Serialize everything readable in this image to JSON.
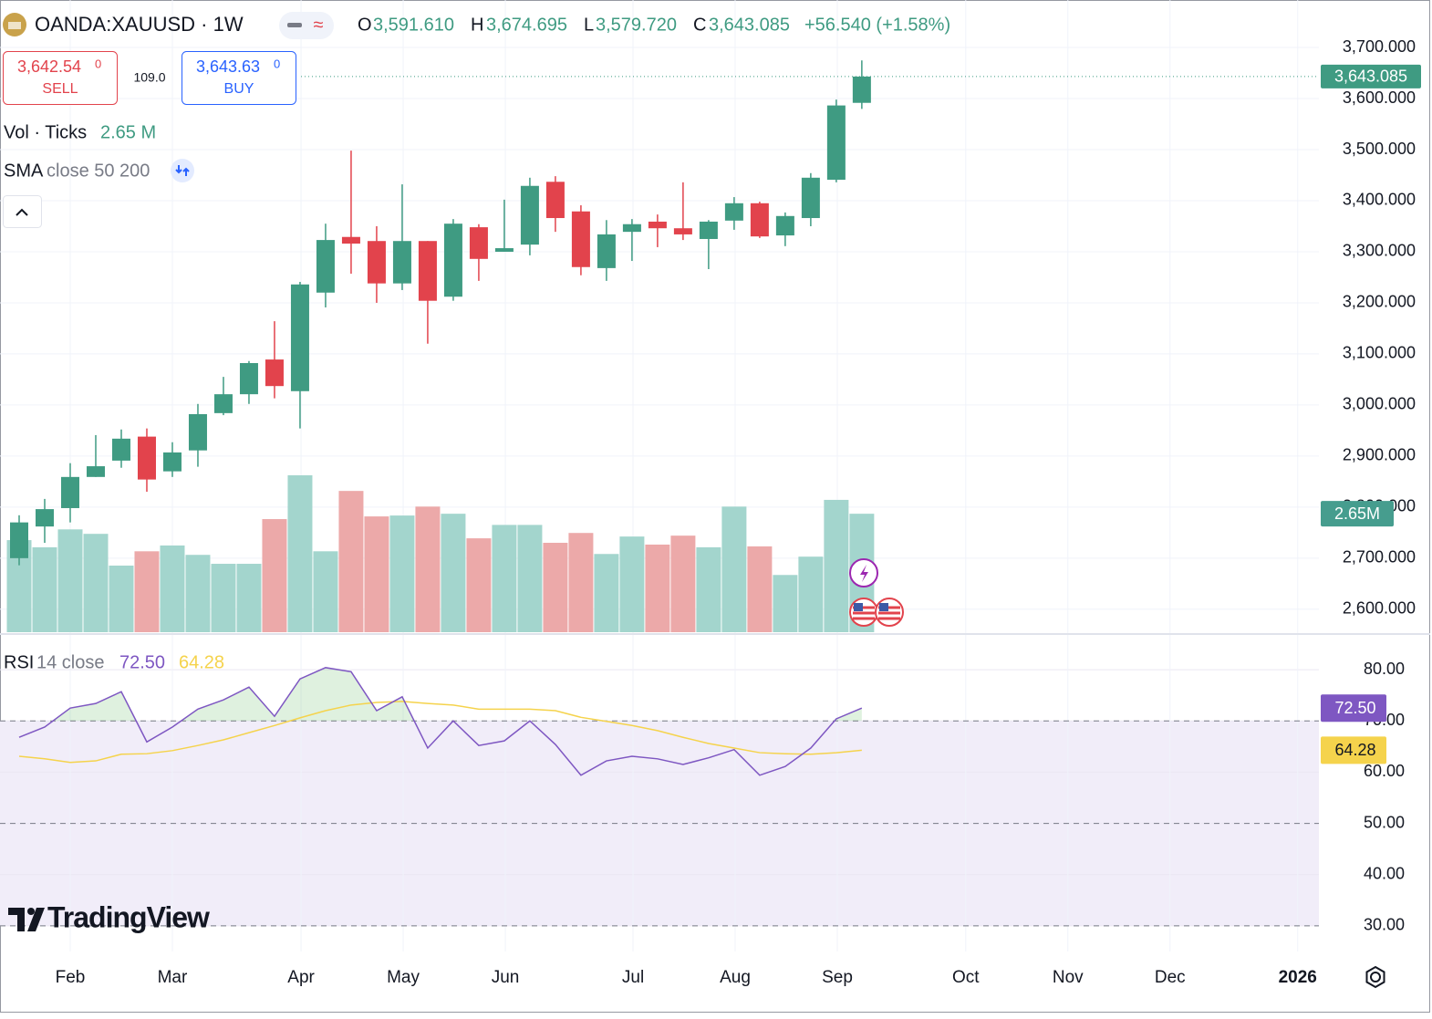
{
  "header": {
    "symbol": "OANDA:XAUUSD · 1W",
    "ohlc_keys": [
      "O",
      "H",
      "L",
      "C"
    ],
    "change": "+56.540 (+1.58%)"
  },
  "trade": {
    "sell_price": "3,642.54",
    "sell_pip": "0",
    "sell_label": "SELL",
    "spread": "109.0",
    "buy_price": "3,643.63",
    "buy_pip": "0",
    "buy_label": "BUY"
  },
  "watermark": "TradingView",
  "chart_data": {
    "type": "candlestick",
    "up_color": "#3f9b82",
    "down_color": "#e2434c",
    "open": [
      2700,
      2762,
      2798,
      2859,
      2891,
      2938,
      2870,
      2911,
      2984,
      3021,
      3089,
      3027,
      3220,
      3329,
      3321,
      3238,
      3321,
      3212,
      3348,
      3300,
      3314,
      3437,
      3379,
      3268,
      3339,
      3359,
      3346,
      3325,
      3361,
      3395,
      3332,
      3366,
      3441,
      3591.61
    ],
    "high": [
      2784,
      2816,
      2886,
      2941,
      2952,
      2954,
      2927,
      3002,
      3055,
      3086,
      3164,
      3241,
      3355,
      3498,
      3350,
      3432,
      3321,
      3364,
      3354,
      3402,
      3445,
      3448,
      3391,
      3362,
      3364,
      3373,
      3436,
      3362,
      3407,
      3398,
      3377,
      3454,
      3598,
      3674.695
    ],
    "low": [
      2686,
      2730,
      2770,
      2859,
      2877,
      2830,
      2859,
      2879,
      2980,
      3002,
      3013,
      2954,
      3191,
      3257,
      3200,
      3225,
      3120,
      3204,
      3243,
      3300,
      3293,
      3339,
      3254,
      3243,
      3282,
      3309,
      3323,
      3266,
      3343,
      3327,
      3311,
      3350,
      3436,
      3579.72
    ],
    "close": [
      2770,
      2796,
      2859,
      2880,
      2934,
      2854,
      2907,
      2982,
      3021,
      3082,
      3037,
      3236,
      3323,
      3316,
      3238,
      3321,
      3204,
      3355,
      3286,
      3307,
      3429,
      3366,
      3270,
      3334,
      3354,
      3346,
      3334,
      3359,
      3395,
      3330,
      3370,
      3445,
      3586.5,
      3643.085
    ],
    "last_labels": {
      "open": "3,591.610",
      "high": "3,674.695",
      "low": "3,579.720",
      "close": "3,643.085"
    },
    "ylim": [
      2555,
      3793
    ],
    "yticks": [
      {
        "value": 3700,
        "label": "3,700.000"
      },
      {
        "value": 3600,
        "label": "3,600.000"
      },
      {
        "value": 3500,
        "label": "3,500.000"
      },
      {
        "value": 3400,
        "label": "3,400.000"
      },
      {
        "value": 3300,
        "label": "3,300.000"
      },
      {
        "value": 3200,
        "label": "3,200.000"
      },
      {
        "value": 3100,
        "label": "3,100.000"
      },
      {
        "value": 3000,
        "label": "3,000.000"
      },
      {
        "value": 2900,
        "label": "2,900.000"
      },
      {
        "value": 2800,
        "label": "2,800.000"
      },
      {
        "value": 2700,
        "label": "2,700.000"
      },
      {
        "value": 2600,
        "label": "2,600.000"
      }
    ],
    "xlim": [
      -0.75,
      50.9
    ],
    "xticks": [
      {
        "value": 2,
        "label": "Feb"
      },
      {
        "value": 6,
        "label": "Mar"
      },
      {
        "value": 11.04,
        "label": "Apr"
      },
      {
        "value": 15.04,
        "label": "May"
      },
      {
        "value": 19.04,
        "label": "Jun"
      },
      {
        "value": 24.04,
        "label": "Jul"
      },
      {
        "value": 28.04,
        "label": "Aug"
      },
      {
        "value": 32.04,
        "label": "Sep"
      },
      {
        "value": 37.07,
        "label": "Oct"
      },
      {
        "value": 41.07,
        "label": "Nov"
      },
      {
        "value": 45.07,
        "label": "Dec"
      },
      {
        "value": 50.07,
        "label": "2026"
      }
    ],
    "grid": true,
    "volume": {
      "name": "Vol · Ticks",
      "up_color": "#a3d5cd",
      "down_color": "#eca9a9",
      "values": [
        2.06,
        1.9,
        2.3,
        2.2,
        1.49,
        1.81,
        1.94,
        1.73,
        1.53,
        1.53,
        2.53,
        3.51,
        1.81,
        3.16,
        2.59,
        2.61,
        2.81,
        2.65,
        2.1,
        2.4,
        2.4,
        2.0,
        2.22,
        1.75,
        2.14,
        1.96,
        2.16,
        1.9,
        2.81,
        1.92,
        1.28,
        1.69,
        2.96,
        2.65
      ],
      "legend_label": "2.65 M",
      "axis_label": "2.65M"
    },
    "sma": {
      "name": "SMA",
      "params": "close 50 200"
    },
    "rsi": {
      "name": "RSI",
      "params": "14 close",
      "color": "#7e57c2",
      "values": [
        66.8,
        68.8,
        72.5,
        73.4,
        75.7,
        65.9,
        68.8,
        72.3,
        74.1,
        76.6,
        70.9,
        78.2,
        80.4,
        79.6,
        72.0,
        74.7,
        64.7,
        70.0,
        65.2,
        66.1,
        70.0,
        65.4,
        59.4,
        62.2,
        63.1,
        62.6,
        61.5,
        62.8,
        64.4,
        59.4,
        61.1,
        64.7,
        70.4,
        72.5
      ],
      "value_label": "72.50",
      "sma_color": "#f5d34c",
      "sma_values": [
        63.1,
        62.6,
        61.9,
        62.2,
        63.5,
        63.6,
        64.2,
        65.2,
        66.3,
        67.7,
        69.1,
        70.6,
        72.0,
        73.1,
        73.6,
        73.8,
        73.4,
        73.1,
        72.3,
        72.3,
        72.3,
        72.0,
        70.7,
        69.9,
        69.1,
        68.1,
        66.8,
        65.6,
        64.7,
        63.8,
        63.6,
        63.5,
        63.8,
        64.28
      ],
      "sma_value_label": "64.28",
      "ylim": [
        25,
        86.6
      ],
      "yticks": [
        {
          "value": 80,
          "label": "80.00"
        },
        {
          "value": 70,
          "label": "70.00"
        },
        {
          "value": 60,
          "label": "60.00"
        },
        {
          "value": 50,
          "label": "50.00"
        },
        {
          "value": 40,
          "label": "40.00"
        },
        {
          "value": 30,
          "label": "30.00"
        }
      ],
      "levels": [
        70,
        50,
        30
      ]
    }
  }
}
